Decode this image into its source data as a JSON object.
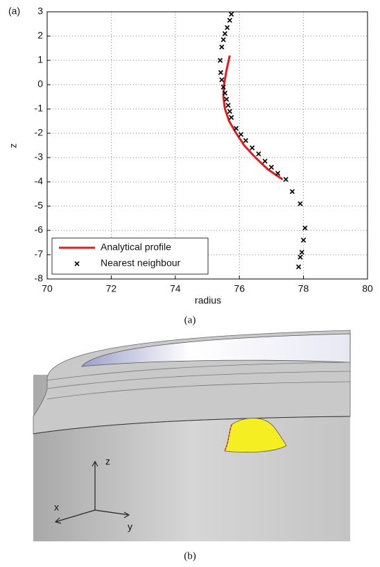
{
  "chart_data": {
    "type": "line",
    "panel_label": "(a)",
    "xlabel": "radius",
    "ylabel": "z",
    "xlim": [
      70,
      80
    ],
    "xticks": [
      70,
      72,
      74,
      76,
      78,
      80
    ],
    "ylim": [
      -8,
      3
    ],
    "yticks": [
      -8,
      -7,
      -6,
      -5,
      -4,
      -3,
      -2,
      -1,
      0,
      1,
      2,
      3
    ],
    "grid": true,
    "legend": "lower left",
    "series": [
      {
        "name": "Analytical profile",
        "color": "#e41a1c",
        "mode": "line",
        "x": [
          75.7,
          75.6,
          75.52,
          75.5,
          75.55,
          75.68,
          75.9,
          76.15,
          76.5,
          76.9,
          77.35
        ],
        "values": [
          1.2,
          0.6,
          0,
          -0.5,
          -1.0,
          -1.5,
          -2.0,
          -2.5,
          -3.0,
          -3.5,
          -3.9
        ]
      },
      {
        "name": "Nearest neighbour",
        "color": "#000000",
        "mode": "markers",
        "x": [
          75.75,
          75.7,
          75.62,
          75.55,
          75.5,
          75.45,
          75.4,
          75.42,
          75.45,
          75.5,
          75.55,
          75.6,
          75.65,
          75.7,
          75.75,
          75.9,
          76.05,
          76.2,
          76.4,
          76.6,
          76.8,
          77.0,
          77.2,
          77.45,
          77.65,
          77.9,
          78.05,
          78.0,
          77.95,
          77.9,
          77.85
        ],
        "values": [
          2.9,
          2.65,
          2.35,
          2.1,
          1.85,
          1.55,
          1.0,
          0.5,
          0.2,
          -0.1,
          -0.35,
          -0.6,
          -0.85,
          -1.1,
          -1.35,
          -1.8,
          -2.05,
          -2.3,
          -2.6,
          -2.85,
          -3.15,
          -3.4,
          -3.65,
          -3.9,
          -4.4,
          -4.9,
          -5.9,
          -6.4,
          -6.9,
          -7.1,
          -7.5
        ]
      }
    ]
  },
  "captions": [
    "(a)",
    "(b)"
  ],
  "render": {
    "axis_labels": [
      "z",
      "x",
      "y"
    ]
  }
}
